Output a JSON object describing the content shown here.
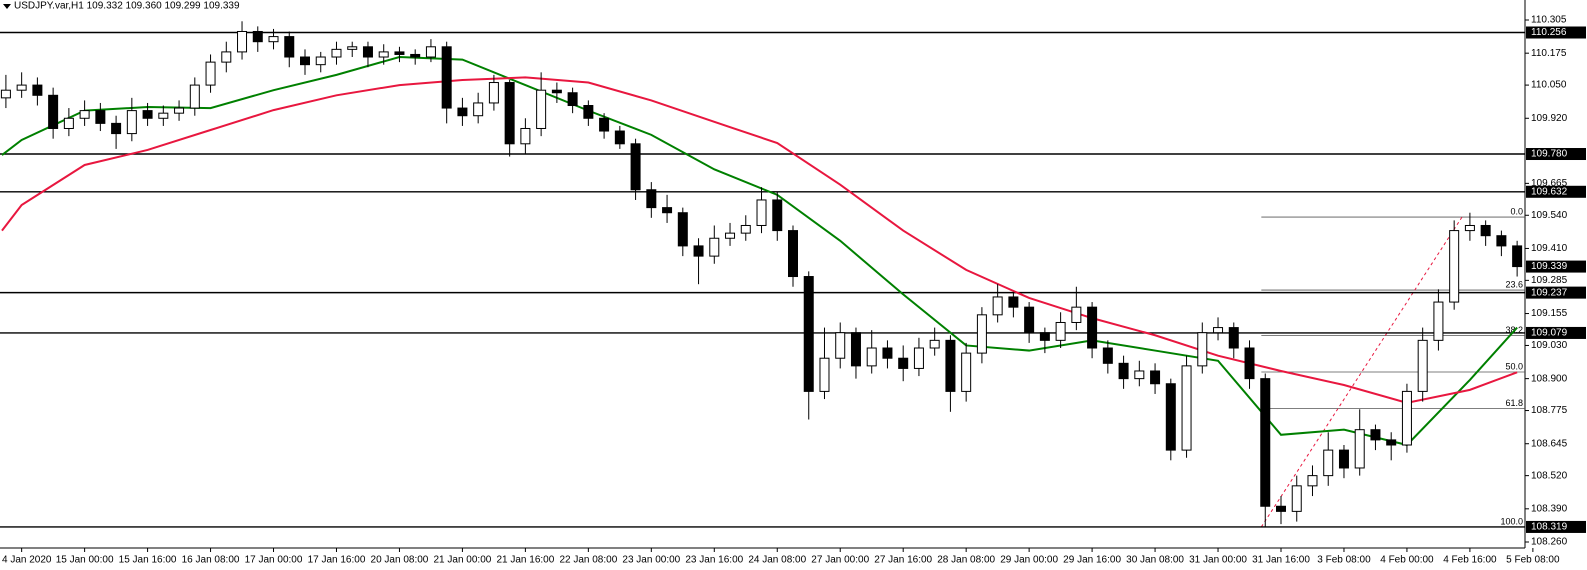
{
  "chart_data": {
    "type": "candlestick",
    "header": "USDJPY.var,H1  109.332 109.360 109.299 109.339",
    "x": [
      -20,
      -16,
      -12,
      -8,
      -4,
      0,
      4,
      8,
      12,
      16,
      20,
      24,
      28,
      32,
      36,
      40,
      44,
      48,
      52,
      56,
      60,
      64,
      68,
      72,
      76,
      80,
      84,
      88,
      92,
      96,
      100,
      104,
      108,
      112,
      116,
      120,
      124,
      128,
      132,
      136,
      140,
      144,
      148,
      152,
      156,
      160,
      164,
      168,
      172,
      176,
      180,
      184,
      188,
      192,
      196,
      200,
      204,
      208,
      212,
      216,
      220,
      224,
      228,
      232,
      236,
      240,
      244,
      248,
      252,
      256,
      260,
      264,
      268,
      272,
      276,
      280,
      284,
      288,
      292,
      296,
      300,
      304,
      308,
      312,
      316,
      320,
      324,
      328,
      332,
      336,
      340,
      344,
      348,
      352,
      356,
      360,
      364
    ],
    "open": [
      110.0,
      110.03,
      110.05,
      110.01,
      109.88,
      109.92,
      109.95,
      109.9,
      109.86,
      109.95,
      109.92,
      109.94,
      109.96,
      110.05,
      110.14,
      110.18,
      110.26,
      110.22,
      110.24,
      110.16,
      110.13,
      110.16,
      110.19,
      110.2,
      110.16,
      110.18,
      110.17,
      110.16,
      110.2,
      109.96,
      109.93,
      109.98,
      110.06,
      109.82,
      109.88,
      110.03,
      110.02,
      109.97,
      109.92,
      109.87,
      109.82,
      109.64,
      109.57,
      109.55,
      109.42,
      109.38,
      109.45,
      109.47,
      109.5,
      109.6,
      109.48,
      109.3,
      108.85,
      108.98,
      109.08,
      108.95,
      109.02,
      108.98,
      108.94,
      109.02,
      109.05,
      108.85,
      109.0,
      109.15,
      109.22,
      109.18,
      109.08,
      109.05,
      109.12,
      109.18,
      109.02,
      108.96,
      108.9,
      108.93,
      108.88,
      108.62,
      108.95,
      109.08,
      109.1,
      109.02,
      108.9,
      108.4,
      108.38,
      108.48,
      108.52,
      108.62,
      108.55,
      108.7,
      108.66,
      108.64,
      108.85,
      109.05,
      109.2,
      109.48,
      109.5,
      109.46,
      109.42
    ],
    "high": [
      110.09,
      110.1,
      110.08,
      110.04,
      109.96,
      109.99,
      109.98,
      109.93,
      110.0,
      109.98,
      109.97,
      109.99,
      110.08,
      110.17,
      110.22,
      110.3,
      110.28,
      110.27,
      110.26,
      110.19,
      110.18,
      110.22,
      110.22,
      110.22,
      110.21,
      110.2,
      110.19,
      110.23,
      110.22,
      110.0,
      110.02,
      110.09,
      110.07,
      109.92,
      110.1,
      110.06,
      110.04,
      109.99,
      109.94,
      109.89,
      109.84,
      109.67,
      109.62,
      109.57,
      109.45,
      109.5,
      109.51,
      109.54,
      109.65,
      109.63,
      109.5,
      109.32,
      109.1,
      109.12,
      109.1,
      109.09,
      109.05,
      109.03,
      109.06,
      109.1,
      109.07,
      109.04,
      109.18,
      109.27,
      109.24,
      109.2,
      109.1,
      109.16,
      109.26,
      109.2,
      109.05,
      108.99,
      108.97,
      108.96,
      108.9,
      108.99,
      109.12,
      109.14,
      109.12,
      109.05,
      108.92,
      108.44,
      108.52,
      108.56,
      108.69,
      108.64,
      108.78,
      108.72,
      108.69,
      108.88,
      109.1,
      109.25,
      109.52,
      109.55,
      109.52,
      109.48,
      109.44
    ],
    "low": [
      109.96,
      110.0,
      109.97,
      109.84,
      109.85,
      109.89,
      109.87,
      109.8,
      109.83,
      109.89,
      109.89,
      109.91,
      109.93,
      110.02,
      110.1,
      110.15,
      110.18,
      110.19,
      110.12,
      110.09,
      110.1,
      110.13,
      110.16,
      110.12,
      110.13,
      110.14,
      110.13,
      110.14,
      109.9,
      109.89,
      109.9,
      109.95,
      109.77,
      109.78,
      109.85,
      109.98,
      109.94,
      109.89,
      109.84,
      109.8,
      109.6,
      109.53,
      109.51,
      109.38,
      109.27,
      109.35,
      109.42,
      109.44,
      109.47,
      109.44,
      109.26,
      108.74,
      108.82,
      108.94,
      108.9,
      108.92,
      108.94,
      108.89,
      108.91,
      108.99,
      108.77,
      108.81,
      108.96,
      109.12,
      109.14,
      109.04,
      109.0,
      109.02,
      109.09,
      108.98,
      108.92,
      108.86,
      108.87,
      108.84,
      108.58,
      108.59,
      108.92,
      109.05,
      108.98,
      108.86,
      108.32,
      108.33,
      108.34,
      108.44,
      108.48,
      108.51,
      108.52,
      108.62,
      108.58,
      108.61,
      108.81,
      109.01,
      109.17,
      109.44,
      109.42,
      109.38,
      109.3
    ],
    "close": [
      110.03,
      110.05,
      110.01,
      109.88,
      109.92,
      109.95,
      109.9,
      109.86,
      109.95,
      109.92,
      109.94,
      109.96,
      110.05,
      110.14,
      110.18,
      110.26,
      110.22,
      110.24,
      110.16,
      110.13,
      110.16,
      110.19,
      110.2,
      110.16,
      110.18,
      110.17,
      110.16,
      110.2,
      109.96,
      109.93,
      109.98,
      110.06,
      109.82,
      109.88,
      110.03,
      110.02,
      109.97,
      109.92,
      109.87,
      109.82,
      109.64,
      109.57,
      109.55,
      109.42,
      109.38,
      109.45,
      109.47,
      109.5,
      109.6,
      109.48,
      109.3,
      108.85,
      108.98,
      109.08,
      108.95,
      109.02,
      108.98,
      108.94,
      109.02,
      109.05,
      108.85,
      109.0,
      109.15,
      109.22,
      109.18,
      109.08,
      109.05,
      109.12,
      109.18,
      109.02,
      108.96,
      108.9,
      108.93,
      108.88,
      108.62,
      108.95,
      109.08,
      109.1,
      109.02,
      108.9,
      108.4,
      108.38,
      108.48,
      108.52,
      108.62,
      108.55,
      108.7,
      108.66,
      108.64,
      108.85,
      109.05,
      109.2,
      109.48,
      109.5,
      109.46,
      109.42,
      109.339
    ],
    "up_color": "#ffffff",
    "down_color": "#000000",
    "series": [
      {
        "color": "#008000",
        "x": [
          -21,
          -16,
          0,
          16,
          32,
          48,
          64,
          80,
          96,
          112,
          128,
          144,
          160,
          176,
          192,
          208,
          224,
          240,
          256,
          272,
          288,
          304,
          320,
          336,
          352,
          364
        ],
        "values": [
          109.776,
          109.835,
          109.95,
          109.964,
          109.96,
          110.03,
          110.09,
          110.16,
          110.15,
          110.05,
          109.95,
          109.855,
          109.72,
          109.62,
          109.44,
          109.23,
          109.03,
          109.01,
          109.05,
          109.01,
          108.97,
          108.68,
          108.7,
          108.64,
          108.895,
          109.1
        ]
      },
      {
        "color": "#e8173f",
        "x": [
          -21,
          -16,
          0,
          16,
          32,
          48,
          64,
          80,
          96,
          112,
          128,
          144,
          160,
          176,
          192,
          208,
          224,
          240,
          256,
          272,
          288,
          304,
          320,
          336,
          352,
          364
        ],
        "values": [
          109.48,
          109.58,
          109.737,
          109.796,
          109.874,
          109.952,
          110.01,
          110.05,
          110.07,
          110.08,
          110.06,
          109.99,
          109.906,
          109.823,
          109.66,
          109.48,
          109.326,
          109.216,
          109.137,
          109.07,
          108.99,
          108.93,
          108.875,
          108.805,
          108.856,
          108.925
        ]
      }
    ],
    "levels": [
      110.256,
      {
        "value": 109.78,
        "label": "109.780"
      },
      109.632,
      109.237,
      109.079,
      108.319
    ],
    "last_price": 109.339,
    "fibonacci": {
      "x_start": 299,
      "levels": [
        {
          "label": "0.0",
          "value": 109.533
        },
        {
          "label": "23.6",
          "value": 109.247
        },
        {
          "label": "38.2",
          "value": 109.069
        },
        {
          "label": "50.0",
          "value": 108.926
        },
        {
          "label": "61.8",
          "value": 108.783
        },
        {
          "label": "100.0",
          "value": 108.319
        }
      ],
      "trend": {
        "x": [
          299,
          350
        ],
        "values": [
          108.319,
          109.533
        ],
        "color": "#e8173f"
      }
    },
    "xlim": [
      -21.5,
      366
    ],
    "ylim": [
      108.2365,
      110.3285
    ],
    "yticks": [
      110.305,
      110.175,
      {
        "value": 110.05,
        "label": "110.050"
      },
      {
        "value": 109.92,
        "label": "109.920"
      },
      109.665,
      {
        "value": 109.54,
        "label": "109.540"
      },
      {
        "value": 109.41,
        "label": "109.410"
      },
      109.285,
      109.155,
      {
        "value": 109.03,
        "label": "109.030"
      },
      {
        "value": 108.9,
        "label": "108.900"
      },
      108.775,
      108.645,
      {
        "value": 108.52,
        "label": "108.520"
      },
      {
        "value": 108.39,
        "label": "108.390"
      },
      {
        "value": 108.26,
        "label": "108.260"
      }
    ],
    "xticks": [
      {
        "value": -16,
        "label": "4 Jan 2020"
      },
      {
        "value": 0,
        "label": "15 Jan 00:00"
      },
      {
        "value": 16,
        "label": "15 Jan 16:00"
      },
      {
        "value": 32,
        "label": "16 Jan 08:00"
      },
      {
        "value": 48,
        "label": "17 Jan 00:00"
      },
      {
        "value": 64,
        "label": "17 Jan 16:00"
      },
      {
        "value": 80,
        "label": "20 Jan 08:00"
      },
      {
        "value": 96,
        "label": "21 Jan 00:00"
      },
      {
        "value": 112,
        "label": "21 Jan 16:00"
      },
      {
        "value": 128,
        "label": "22 Jan 08:00"
      },
      {
        "value": 144,
        "label": "23 Jan 00:00"
      },
      {
        "value": 160,
        "label": "23 Jan 16:00"
      },
      {
        "value": 176,
        "label": "24 Jan 08:00"
      },
      {
        "value": 192,
        "label": "27 Jan 00:00"
      },
      {
        "value": 208,
        "label": "27 Jan 16:00"
      },
      {
        "value": 224,
        "label": "28 Jan 08:00"
      },
      {
        "value": 240,
        "label": "29 Jan 00:00"
      },
      {
        "value": 256,
        "label": "29 Jan 16:00"
      },
      {
        "value": 272,
        "label": "30 Jan 08:00"
      },
      {
        "value": 288,
        "label": "31 Jan 00:00"
      },
      {
        "value": 304,
        "label": "31 Jan 16:00"
      },
      {
        "value": 320,
        "label": "3 Feb 08:00"
      },
      {
        "value": 336,
        "label": "4 Feb 00:00"
      },
      {
        "value": 352,
        "label": "4 Feb 16:00"
      },
      {
        "value": 368,
        "label": "5 Feb 08:00"
      }
    ]
  }
}
